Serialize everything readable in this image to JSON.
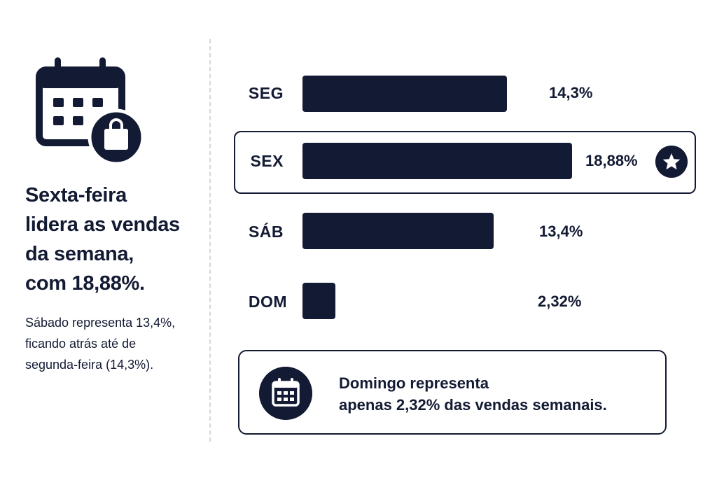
{
  "colors": {
    "ink": "#131a33",
    "background": "#ffffff",
    "divider": "#d4d7de"
  },
  "left_panel": {
    "icon": "calendar-shopping-bag-icon",
    "headline": "Sexta-feira\nlidera as vendas\nda semana,\ncom 18,88%.",
    "body": "Sábado representa 13,4%,\nficando atrás até de\nsegunda-feira (14,3%)."
  },
  "chart_data": {
    "type": "bar",
    "orientation": "horizontal",
    "categories": [
      "SEG",
      "SEX",
      "SÁB",
      "DOM"
    ],
    "values": [
      14.3,
      18.88,
      13.4,
      2.32
    ],
    "value_labels": [
      "14,3%",
      "18,88%",
      "13,4%",
      "2,32%"
    ],
    "highlighted_category": "SEX",
    "highlight_icon": "star-icon",
    "grid": false,
    "legend": "none"
  },
  "callout": {
    "icon": "calendar-icon",
    "text": "Domingo representa\napenas 2,32% das vendas semanais."
  }
}
